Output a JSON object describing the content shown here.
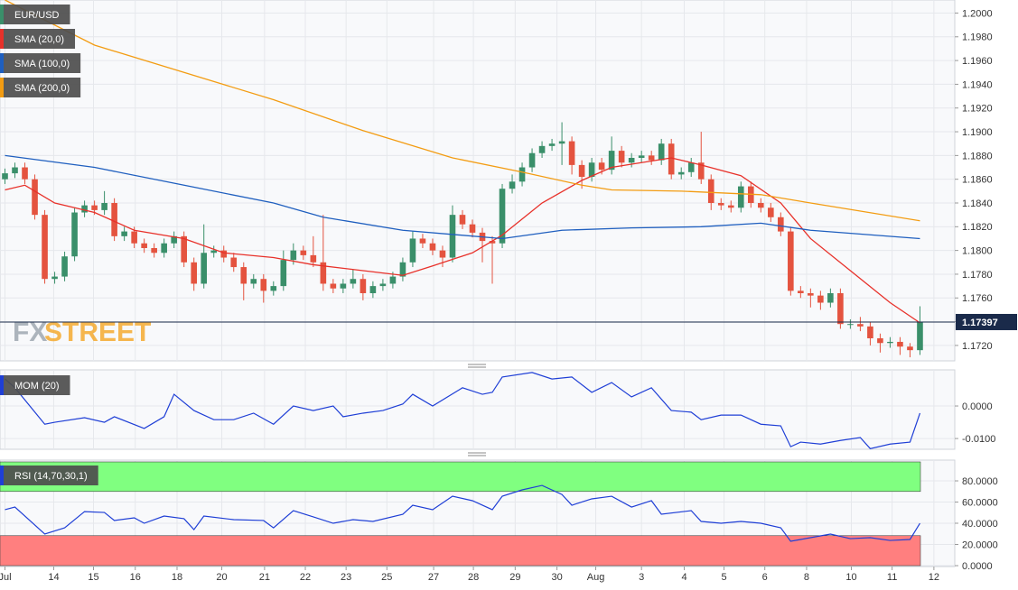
{
  "chart_data": [
    {
      "type": "candlestick",
      "name": "EUR/USD",
      "up_color": "#3a8f6a",
      "down_color": "#e4533f",
      "open": [
        1.186,
        1.1865,
        1.187,
        1.186,
        1.183,
        1.1776,
        1.1778,
        1.1795,
        1.1832,
        1.1838,
        1.1834,
        1.184,
        1.1812,
        1.1816,
        1.1806,
        1.1802,
        1.1798,
        1.1806,
        1.1812,
        1.179,
        1.1772,
        1.1798,
        1.18,
        1.1794,
        1.1786,
        1.1772,
        1.1776,
        1.1766,
        1.177,
        1.1792,
        1.18,
        1.1796,
        1.179,
        1.1772,
        1.1768,
        1.1772,
        1.1776,
        1.1764,
        1.177,
        1.1772,
        1.1778,
        1.179,
        1.181,
        1.1806,
        1.18,
        1.1794,
        1.183,
        1.1822,
        1.1815,
        1.1808,
        1.1806,
        1.1852,
        1.1858,
        1.187,
        1.1882,
        1.1888,
        1.189,
        1.1892,
        1.1872,
        1.1862,
        1.1874,
        1.1868,
        1.1884,
        1.1874,
        1.1878,
        1.188,
        1.1876,
        1.189,
        1.1864,
        1.1866,
        1.1874,
        1.186,
        1.184,
        1.1838,
        1.1836,
        1.1854,
        1.184,
        1.1836,
        1.1828,
        1.1816,
        1.1766,
        1.1764,
        1.1762,
        1.1756,
        1.1764,
        1.1738,
        1.1738,
        1.1736,
        1.1726,
        1.1722,
        1.1723,
        1.1719,
        1.1716
      ],
      "high": [
        1.1869,
        1.1874,
        1.1874,
        1.1864,
        1.1834,
        1.1782,
        1.1799,
        1.1836,
        1.1842,
        1.1842,
        1.185,
        1.1844,
        1.182,
        1.182,
        1.181,
        1.1806,
        1.181,
        1.1816,
        1.1816,
        1.1794,
        1.1822,
        1.1804,
        1.1804,
        1.1798,
        1.179,
        1.178,
        1.178,
        1.1774,
        1.18,
        1.1806,
        1.1804,
        1.1812,
        1.183,
        1.1776,
        1.1776,
        1.1784,
        1.178,
        1.1774,
        1.1776,
        1.1782,
        1.1794,
        1.1816,
        1.1814,
        1.181,
        1.1804,
        1.1838,
        1.1834,
        1.1826,
        1.1819,
        1.1812,
        1.1856,
        1.1864,
        1.1874,
        1.1886,
        1.1892,
        1.1894,
        1.1908,
        1.1896,
        1.1876,
        1.1878,
        1.1878,
        1.1896,
        1.1888,
        1.1882,
        1.1884,
        1.1884,
        1.1894,
        1.1894,
        1.187,
        1.1878,
        1.19,
        1.1864,
        1.1844,
        1.1842,
        1.1858,
        1.1858,
        1.1844,
        1.184,
        1.1832,
        1.182,
        1.177,
        1.1768,
        1.1766,
        1.1768,
        1.1768,
        1.1742,
        1.1744,
        1.174,
        1.173,
        1.1727,
        1.1727,
        1.1722,
        1.1753
      ],
      "low": [
        1.1856,
        1.1861,
        1.1856,
        1.1826,
        1.1772,
        1.1772,
        1.1774,
        1.1791,
        1.1828,
        1.183,
        1.183,
        1.1808,
        1.1808,
        1.1802,
        1.1798,
        1.1794,
        1.1794,
        1.1802,
        1.1786,
        1.1766,
        1.1768,
        1.1794,
        1.179,
        1.1782,
        1.1758,
        1.1768,
        1.1756,
        1.1762,
        1.1766,
        1.1788,
        1.1792,
        1.1786,
        1.1766,
        1.1764,
        1.1764,
        1.1768,
        1.1758,
        1.176,
        1.1766,
        1.1768,
        1.1774,
        1.1786,
        1.1802,
        1.1796,
        1.1786,
        1.179,
        1.1818,
        1.1811,
        1.179,
        1.1772,
        1.1802,
        1.1848,
        1.1854,
        1.1866,
        1.1878,
        1.1884,
        1.1872,
        1.1864,
        1.1852,
        1.1858,
        1.1864,
        1.1864,
        1.187,
        1.187,
        1.1874,
        1.1872,
        1.1872,
        1.186,
        1.186,
        1.1862,
        1.1856,
        1.1834,
        1.1834,
        1.1832,
        1.1832,
        1.1836,
        1.1832,
        1.1824,
        1.1812,
        1.1762,
        1.176,
        1.1752,
        1.175,
        1.1752,
        1.1734,
        1.1734,
        1.1732,
        1.172,
        1.1714,
        1.1718,
        1.1712,
        1.171,
        1.1712
      ],
      "close": [
        1.1865,
        1.187,
        1.186,
        1.183,
        1.1776,
        1.1778,
        1.1795,
        1.1832,
        1.1838,
        1.1834,
        1.184,
        1.1812,
        1.1816,
        1.1806,
        1.1802,
        1.1798,
        1.1806,
        1.1812,
        1.179,
        1.1772,
        1.1798,
        1.18,
        1.1794,
        1.1786,
        1.1772,
        1.1776,
        1.1766,
        1.177,
        1.1792,
        1.18,
        1.1796,
        1.179,
        1.1772,
        1.1768,
        1.1772,
        1.1776,
        1.1764,
        1.177,
        1.1772,
        1.1778,
        1.179,
        1.181,
        1.1806,
        1.18,
        1.1794,
        1.183,
        1.1822,
        1.1815,
        1.1808,
        1.1806,
        1.1852,
        1.1858,
        1.187,
        1.1882,
        1.1888,
        1.189,
        1.1892,
        1.1872,
        1.1862,
        1.1874,
        1.1868,
        1.1884,
        1.1874,
        1.1878,
        1.188,
        1.1876,
        1.189,
        1.1864,
        1.1866,
        1.1874,
        1.186,
        1.184,
        1.1838,
        1.1836,
        1.1854,
        1.184,
        1.1836,
        1.1828,
        1.1816,
        1.1766,
        1.1764,
        1.1762,
        1.1756,
        1.1764,
        1.1738,
        1.1738,
        1.1736,
        1.1726,
        1.1722,
        1.1723,
        1.1719,
        1.1716,
        1.174
      ],
      "overlays": [
        {
          "name": "SMA (20,0)",
          "color": "#e8312a",
          "x": [
            0,
            2,
            5,
            9,
            13,
            18,
            22,
            27,
            31,
            36,
            40,
            43,
            47,
            50,
            54,
            58,
            61,
            67,
            70,
            74,
            78,
            81,
            85,
            89,
            92
          ],
          "values": [
            1.1851,
            1.1855,
            1.184,
            1.1832,
            1.1817,
            1.181,
            1.1798,
            1.1794,
            1.1788,
            1.1783,
            1.1779,
            1.1787,
            1.1798,
            1.1813,
            1.184,
            1.1859,
            1.187,
            1.1878,
            1.1872,
            1.1863,
            1.184,
            1.181,
            1.1783,
            1.1756,
            1.1739
          ]
        },
        {
          "name": "SMA (100,0)",
          "color": "#1f5fbf",
          "x": [
            0,
            9,
            18,
            27,
            32,
            40,
            50,
            56,
            63,
            70,
            76,
            81,
            92
          ],
          "values": [
            1.188,
            1.187,
            1.1855,
            1.184,
            1.1828,
            1.1817,
            1.181,
            1.1817,
            1.1819,
            1.182,
            1.1823,
            1.1817,
            1.181
          ]
        },
        {
          "name": "SMA (200,0)",
          "color": "#f39c12",
          "x": [
            0,
            9,
            18,
            27,
            36,
            45,
            52,
            58,
            61,
            68,
            76,
            81,
            92
          ],
          "values": [
            1.2011,
            1.1973,
            1.195,
            1.1927,
            1.1901,
            1.1878,
            1.1866,
            1.1855,
            1.1851,
            1.185,
            1.1847,
            1.184,
            1.1825
          ]
        }
      ],
      "last_price": 1.17397,
      "last_price_color": "#1a2a4a",
      "xlim": [
        -0.5,
        95.5
      ],
      "ylim": [
        1.1707,
        1.2011
      ],
      "yticks": [
        {
          "value": 1.172,
          "label": "1.1720"
        },
        {
          "value": 1.174,
          "label": "1.1740"
        },
        {
          "value": 1.176,
          "label": "1.1760"
        },
        {
          "value": 1.178,
          "label": "1.1780"
        },
        {
          "value": 1.18,
          "label": "1.1800"
        },
        {
          "value": 1.182,
          "label": "1.1820"
        },
        {
          "value": 1.184,
          "label": "1.1840"
        },
        {
          "value": 1.186,
          "label": "1.1860"
        },
        {
          "value": 1.188,
          "label": "1.1880"
        },
        {
          "value": 1.19,
          "label": "1.1900"
        },
        {
          "value": 1.192,
          "label": "1.1920"
        },
        {
          "value": 1.194,
          "label": "1.1940"
        },
        {
          "value": 1.196,
          "label": "1.1960"
        },
        {
          "value": 1.198,
          "label": "1.1980"
        },
        {
          "value": 1.2,
          "label": "1.2000"
        }
      ],
      "grid": true,
      "watermark": [
        "FX",
        "STREET"
      ]
    },
    {
      "type": "line",
      "series": [
        {
          "name": "MOM (20)",
          "color": "#1f3fd6",
          "x": [
            0,
            1,
            4,
            5,
            8,
            10,
            11,
            14,
            16,
            17,
            19,
            21,
            23,
            25,
            27,
            29,
            31,
            33,
            34,
            36,
            38,
            40,
            41,
            43,
            46,
            48,
            49,
            50,
            53,
            55,
            57,
            59,
            61,
            63,
            65,
            67,
            69,
            70,
            72,
            74,
            76,
            78,
            79,
            80,
            82,
            84,
            86,
            87,
            89,
            91,
            92
          ],
          "values": [
            0.0083,
            0.0056,
            -0.0056,
            -0.005,
            -0.0036,
            -0.005,
            -0.0033,
            -0.0069,
            -0.0033,
            0.0036,
            -0.0014,
            -0.0042,
            -0.0042,
            -0.0022,
            -0.0056,
            0,
            -0.0014,
            0,
            -0.0033,
            -0.0022,
            -0.0014,
            0.0006,
            0.0036,
            0,
            0.0056,
            0.0036,
            0.0042,
            0.0089,
            0.0103,
            0.0083,
            0.0089,
            0.0042,
            0.0072,
            0.0028,
            0.0056,
            -0.0014,
            -0.0019,
            -0.0042,
            -0.0028,
            -0.0028,
            -0.0056,
            -0.0061,
            -0.0125,
            -0.0111,
            -0.0117,
            -0.0106,
            -0.0097,
            -0.0131,
            -0.0117,
            -0.0111,
            -0.0022
          ]
        }
      ],
      "xlim": [
        -0.5,
        95.5
      ],
      "ylim": [
        -0.0133,
        0.0111
      ],
      "yticks": [
        {
          "value": -0.01,
          "label": "-0.0100"
        },
        {
          "value": 0,
          "label": "0.0000"
        }
      ],
      "grid": true
    },
    {
      "type": "line",
      "series": [
        {
          "name": "RSI (14,70,30,1)",
          "color": "#1f3fd6",
          "x": [
            0,
            1,
            4,
            6,
            8,
            10,
            11,
            13,
            14,
            16,
            18,
            19,
            20,
            23,
            26,
            27,
            29,
            31,
            33,
            35,
            37,
            40,
            41,
            43,
            45,
            47,
            49,
            50,
            52,
            54,
            56,
            57,
            59,
            61,
            63,
            65,
            66,
            69,
            70,
            72,
            74,
            76,
            78,
            79,
            80,
            82,
            83,
            85,
            87,
            89,
            91,
            92
          ],
          "values": [
            52.8,
            55.3,
            29.8,
            35.7,
            51,
            50.2,
            42.6,
            45.1,
            40,
            46.8,
            44.3,
            34,
            46.8,
            43.4,
            42.6,
            35.7,
            51.9,
            46,
            40,
            43.4,
            41.7,
            48.5,
            57,
            52.8,
            65.5,
            61.3,
            52.8,
            65.5,
            71.5,
            75.7,
            67.2,
            57,
            63,
            65.5,
            55.3,
            61.3,
            48.5,
            51.9,
            41.7,
            40,
            41.7,
            40,
            35.7,
            23,
            24.7,
            28.1,
            29.8,
            25.5,
            26.4,
            23.8,
            24.7,
            40
          ]
        }
      ],
      "bands": [
        {
          "from": 70,
          "to": 100,
          "color": "#80ff80"
        },
        {
          "from": 0,
          "to": 30,
          "color": "#ff7f7f"
        }
      ],
      "xlim": [
        -0.5,
        95.5
      ],
      "ylim": [
        -0.85,
        99.6
      ],
      "yticks": [
        {
          "value": 0,
          "label": "0.0000"
        },
        {
          "value": 20,
          "label": "20.0000"
        },
        {
          "value": 40,
          "label": "40.0000"
        },
        {
          "value": 60,
          "label": "60.0000"
        },
        {
          "value": 80,
          "label": "80.0000"
        }
      ],
      "xticks": [
        {
          "value": 0,
          "label": "Jul"
        },
        {
          "value": 4.9,
          "label": "14"
        },
        {
          "value": 8.9,
          "label": "15"
        },
        {
          "value": 13.1,
          "label": "16"
        },
        {
          "value": 17.3,
          "label": "18"
        },
        {
          "value": 21.8,
          "label": "20"
        },
        {
          "value": 26.1,
          "label": "21"
        },
        {
          "value": 30.2,
          "label": "22"
        },
        {
          "value": 34.3,
          "label": "23"
        },
        {
          "value": 38.4,
          "label": "25"
        },
        {
          "value": 43.1,
          "label": "27"
        },
        {
          "value": 47.1,
          "label": "28"
        },
        {
          "value": 51.3,
          "label": "29"
        },
        {
          "value": 55.5,
          "label": "30"
        },
        {
          "value": 59.4,
          "label": "Aug"
        },
        {
          "value": 64,
          "label": "3"
        },
        {
          "value": 68.3,
          "label": "4"
        },
        {
          "value": 72.3,
          "label": "5"
        },
        {
          "value": 76.4,
          "label": "6"
        },
        {
          "value": 80.6,
          "label": "8"
        },
        {
          "value": 85.1,
          "label": "10"
        },
        {
          "value": 89.2,
          "label": "11"
        },
        {
          "value": 93.4,
          "label": "12"
        }
      ],
      "grid": true
    }
  ]
}
